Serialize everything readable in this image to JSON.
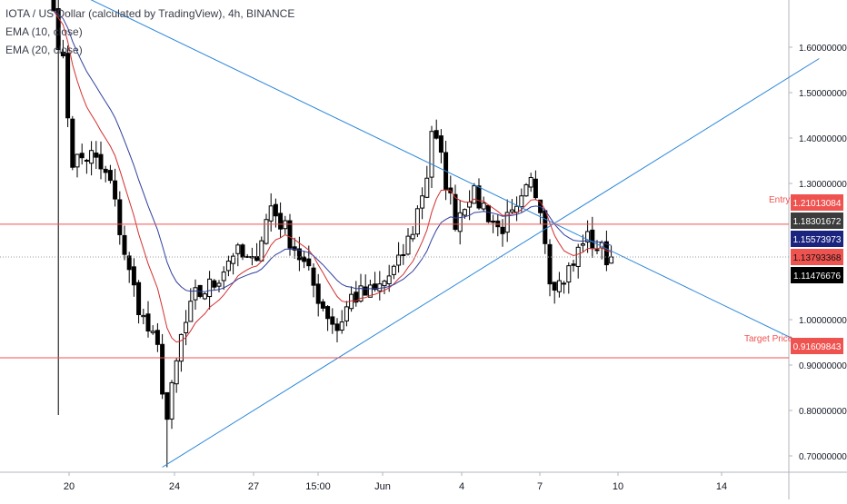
{
  "chart_data": {
    "type": "candlestick",
    "title": "IOTA / US Dollar (calculated by TradingView), 4h, BINANCE",
    "indicators": [
      {
        "name": "EMA (10, close)",
        "color": "#d32f2f"
      },
      {
        "name": "EMA (20, close)",
        "color": "#303f9f"
      }
    ],
    "colors": {
      "up": "#ffffff",
      "down": "#000000",
      "wick": "#000000",
      "trendline": "#2a86d9",
      "level": "#ef5350"
    },
    "ylim": [
      0.64,
      1.66
    ],
    "y_ticks": [
      "1.60000000",
      "1.50000000",
      "1.40000000",
      "1.30000000",
      "1.00000000",
      "0.90000000",
      "0.80000000",
      "0.70000000"
    ],
    "x_ticks": [
      "20",
      "24",
      "27",
      "15:00",
      "Jun",
      "4",
      "7",
      "10",
      "14"
    ],
    "price_labels": [
      {
        "text": "1.21013084",
        "bg": "#ef5350",
        "fg": "#ffffff"
      },
      {
        "text": "1.18301672",
        "bg": "#3c3c3c",
        "fg": "#ffffff"
      },
      {
        "text": "1.15573973",
        "bg": "#1a237e",
        "fg": "#ffffff"
      },
      {
        "text": "1.13793368",
        "bg": "#ef5350",
        "fg": "#111111"
      },
      {
        "text": "1.11476676",
        "bg": "#000000",
        "fg": "#ffffff"
      },
      {
        "text": "0.91609843",
        "bg": "#ef5350",
        "fg": "#ffffff"
      }
    ],
    "levels": [
      {
        "label": "Entry",
        "price": 1.21013084
      },
      {
        "label": "Target Price",
        "price": 0.91609843
      }
    ],
    "current_price": 1.13793368,
    "candle_seed": 7,
    "candle_path": [
      [
        0,
        1.68
      ],
      [
        2,
        1.56
      ],
      [
        4,
        1.35
      ],
      [
        8,
        1.36
      ],
      [
        12,
        1.3
      ],
      [
        16,
        1.1
      ],
      [
        19,
        1.0
      ],
      [
        22,
        0.93
      ],
      [
        24,
        0.78
      ],
      [
        27,
        0.96
      ],
      [
        30,
        1.05
      ],
      [
        34,
        1.08
      ],
      [
        38,
        1.15
      ],
      [
        42,
        1.12
      ],
      [
        46,
        1.25
      ],
      [
        50,
        1.18
      ],
      [
        53,
        1.12
      ],
      [
        57,
        1.03
      ],
      [
        60,
        0.98
      ],
      [
        63,
        1.05
      ],
      [
        68,
        1.06
      ],
      [
        73,
        1.12
      ],
      [
        76,
        1.2
      ],
      [
        79,
        1.32
      ],
      [
        80,
        1.42
      ],
      [
        82,
        1.35
      ],
      [
        85,
        1.22
      ],
      [
        88,
        1.28
      ],
      [
        91,
        1.25
      ],
      [
        94,
        1.2
      ],
      [
        98,
        1.23
      ],
      [
        101,
        1.3
      ],
      [
        103,
        1.26
      ],
      [
        105,
        1.1
      ],
      [
        107,
        1.08
      ],
      [
        110,
        1.12
      ],
      [
        112,
        1.18
      ],
      [
        114,
        1.17
      ],
      [
        117,
        1.14
      ],
      [
        118,
        1.138
      ]
    ],
    "trendlines": [
      {
        "from": {
          "bar": -27,
          "price": 1.88
        },
        "to": {
          "bar": 162,
          "price": 0.93
        }
      },
      {
        "from": {
          "bar": 23,
          "price": 0.675
        },
        "to": {
          "bar": 162,
          "price": 1.575
        }
      }
    ]
  }
}
